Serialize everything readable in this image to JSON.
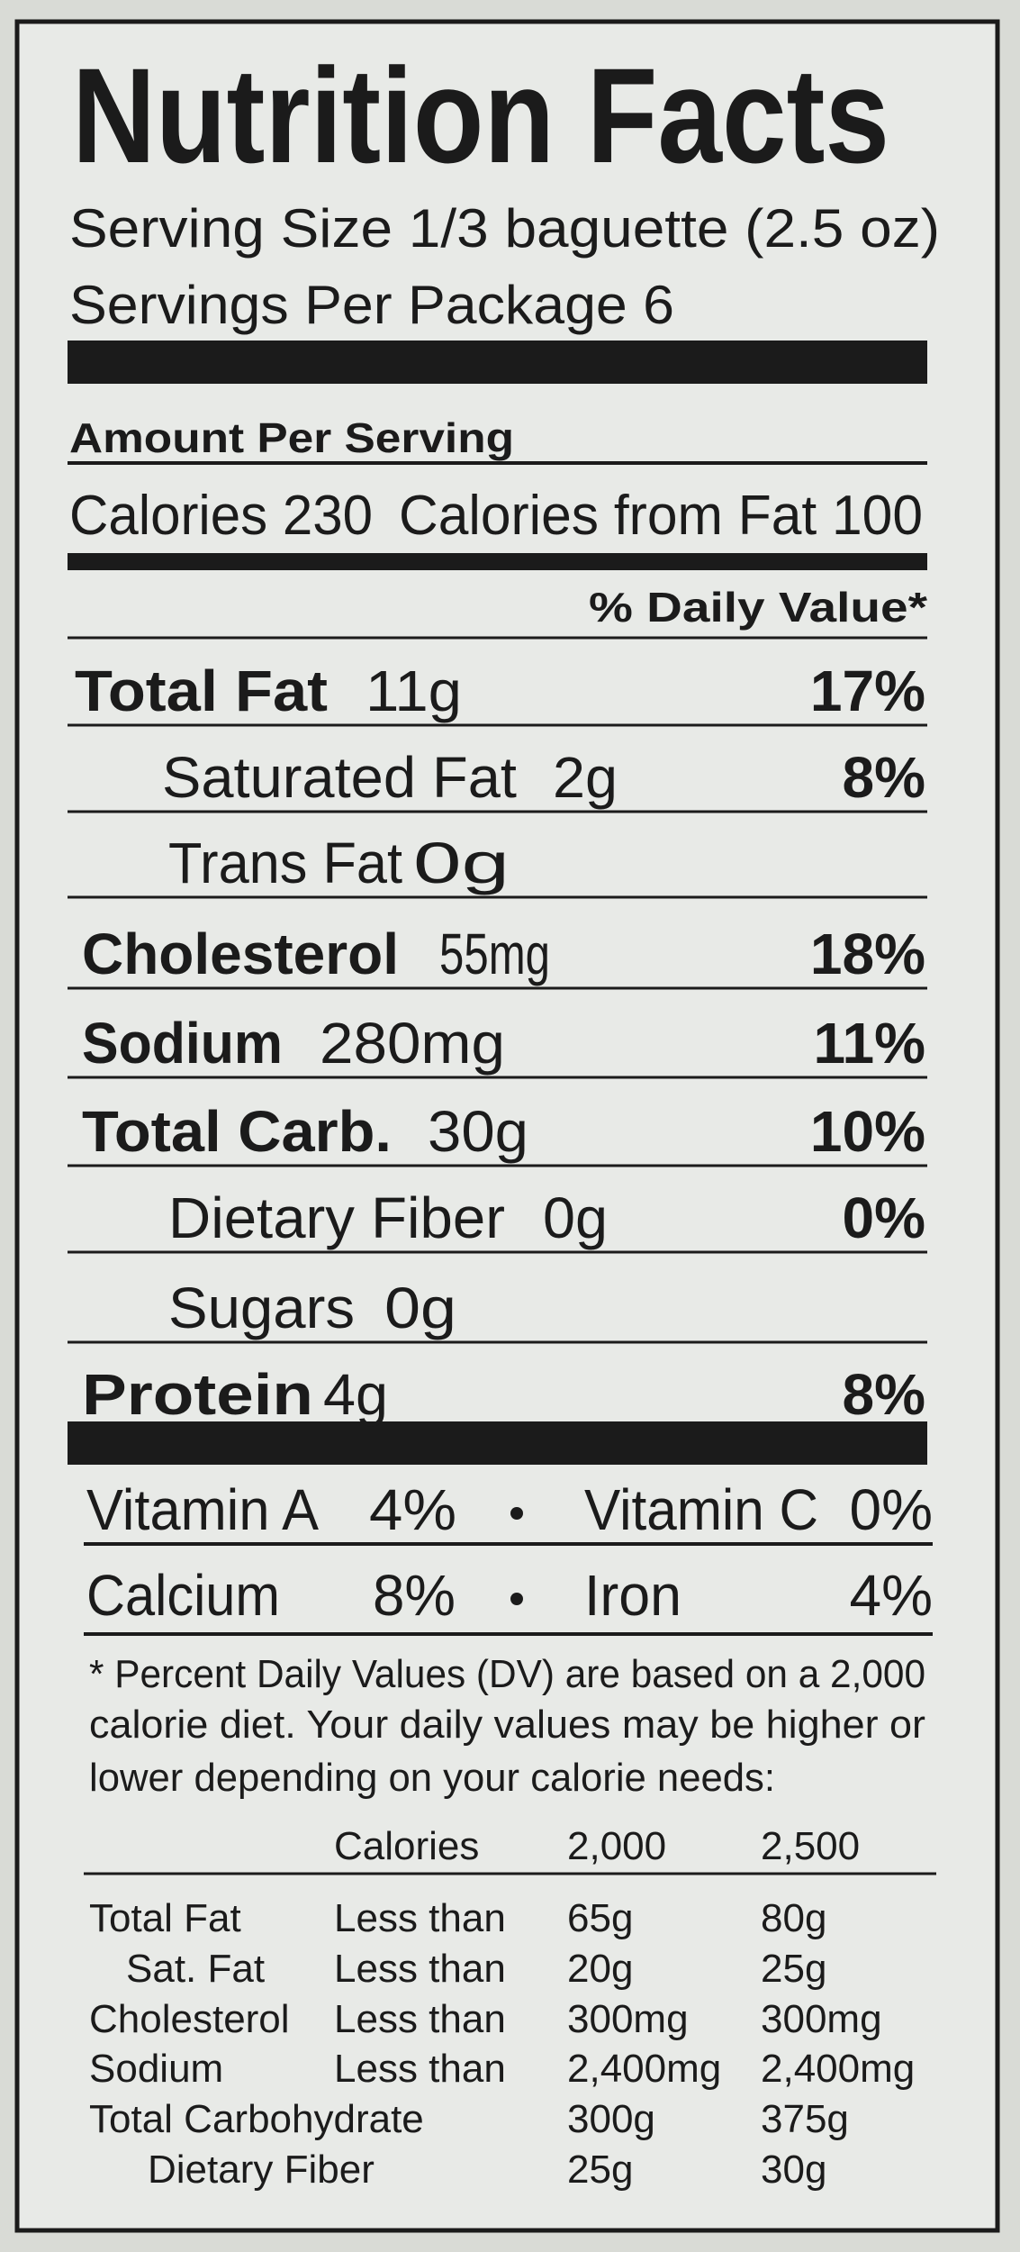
{
  "title": "Nutrition Facts",
  "serving_size": "Serving Size 1/3 baguette (2.5 oz)",
  "servings_per_package": "Servings Per Package 6",
  "amount_per_serving": "Amount Per Serving",
  "calories": "Calories 230",
  "calories_from_fat": "Calories from Fat 100",
  "daily_value_header": "% Daily Value*",
  "nutrients": [
    {
      "name": "Total Fat",
      "amount": "11g",
      "daily_value": "17%"
    },
    {
      "name": "Saturated Fat",
      "amount": "2g",
      "daily_value": "8%"
    },
    {
      "name": "Trans Fat",
      "amount": "0g"
    },
    {
      "name": "Cholesterol",
      "amount": "55mg",
      "daily_value": "18%"
    },
    {
      "name": "Sodium",
      "amount": "280mg",
      "daily_value": "11%"
    },
    {
      "name": "Total Carb.",
      "amount": "30g",
      "daily_value": "10%"
    },
    {
      "name": "Dietary Fiber",
      "amount": "0g",
      "daily_value": "0%"
    },
    {
      "name": "Sugars",
      "amount": "0g"
    },
    {
      "name": "Protein",
      "amount": "4g",
      "daily_value": "8%"
    }
  ],
  "vitamins": [
    [
      {
        "name": "Vitamin A",
        "value": "4%"
      },
      {
        "name": "Vitamin C",
        "value": "0%"
      }
    ],
    [
      {
        "name": "Calcium",
        "value": "8%"
      },
      {
        "name": "Iron",
        "value": "4%"
      }
    ]
  ],
  "footnote": [
    "* Percent Daily Values (DV) are based on a 2,000",
    "calorie diet. Your daily values may be higher or",
    "lower depending on your calorie needs:"
  ],
  "reference_table": {
    "header": [
      "Calories",
      "2,000",
      "2,500"
    ],
    "rows": [
      [
        "Total Fat",
        "Less than",
        "65g",
        "80g"
      ],
      [
        "Sat. Fat",
        "Less than",
        "20g",
        "25g"
      ],
      [
        "Cholesterol",
        "Less than",
        "300mg",
        "300mg"
      ],
      [
        "Sodium",
        "Less than",
        "2,400mg",
        "2,400mg"
      ],
      [
        "Total Carbohydrate",
        "",
        "300g",
        "375g"
      ],
      [
        "Dietary Fiber",
        "",
        "25g",
        "30g"
      ]
    ]
  }
}
